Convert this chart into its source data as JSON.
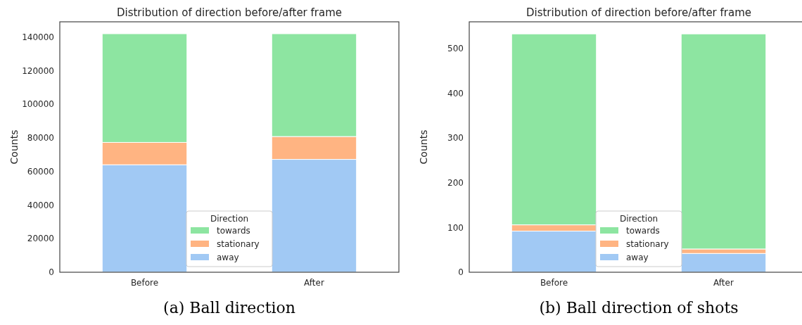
{
  "chart_data": [
    {
      "type": "bar",
      "title": "Distribution of direction before/after frame",
      "ylabel": "Counts",
      "categories": [
        "Before",
        "After"
      ],
      "stacked": true,
      "series": [
        {
          "name": "away",
          "color": "#a1c9f4",
          "values": [
            64000,
            67200
          ]
        },
        {
          "name": "stationary",
          "color": "#ffb482",
          "values": [
            13300,
            13600
          ]
        },
        {
          "name": "towards",
          "color": "#8de5a1",
          "values": [
            64700,
            61200
          ]
        }
      ],
      "legend_title": "Direction",
      "legend": "bottom",
      "ylim": [
        0,
        149100
      ],
      "yticks": [
        0,
        20000,
        40000,
        60000,
        80000,
        100000,
        120000,
        140000
      ],
      "grid": false,
      "annotations": [
        "(a) Ball direction"
      ]
    },
    {
      "type": "bar",
      "title": "Distribution of direction before/after frame",
      "ylabel": "Counts",
      "categories": [
        "Before",
        "After"
      ],
      "stacked": true,
      "series": [
        {
          "name": "away",
          "color": "#a1c9f4",
          "values": [
            92,
            42
          ]
        },
        {
          "name": "stationary",
          "color": "#ffb482",
          "values": [
            14,
            10
          ]
        },
        {
          "name": "towards",
          "color": "#8de5a1",
          "values": [
            427,
            481
          ]
        }
      ],
      "legend_title": "Direction",
      "legend": "bottom",
      "ylim": [
        0,
        560
      ],
      "yticks": [
        0,
        100,
        200,
        300,
        400,
        500
      ],
      "grid": false,
      "annotations": [
        "(b) Ball direction of shots"
      ]
    }
  ]
}
